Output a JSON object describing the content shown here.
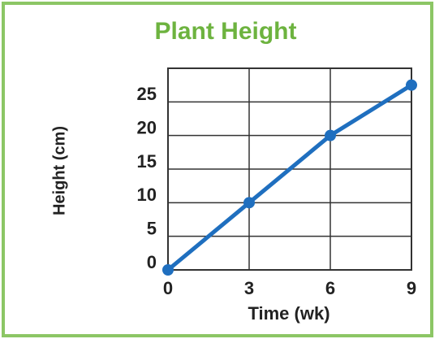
{
  "chart_data": {
    "type": "line",
    "title": "Plant Height",
    "x_label": "Time (wk)",
    "y_label": "Height (cm)",
    "x": [
      0,
      3,
      6,
      9
    ],
    "series": [
      {
        "name": "Plant Height",
        "color": "#1f6fbf",
        "values": [
          0,
          10,
          20,
          27.5
        ]
      }
    ],
    "xlim": [
      0,
      9
    ],
    "xticks": [
      0,
      3,
      6,
      9
    ],
    "ylim": [
      0,
      30
    ],
    "yticks": [
      0,
      5,
      10,
      15,
      20,
      25
    ],
    "grid": true
  }
}
